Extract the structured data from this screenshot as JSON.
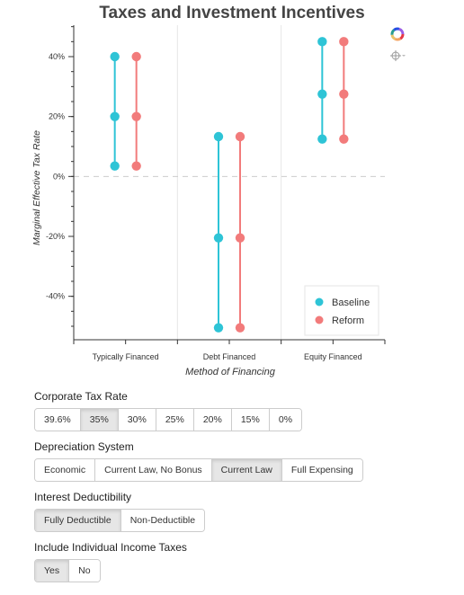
{
  "chart_data": {
    "type": "scatter",
    "title": "Taxes and Investment Incentives",
    "xlabel": "Method of Financing",
    "ylabel": "Marginal Effective Tax Rate",
    "categories": [
      "Typically Financed",
      "Debt Financed",
      "Equity Financed"
    ],
    "ylim": [
      -0.545,
      0.505
    ],
    "yticks": [
      {
        "value": 0.4,
        "label": "40%"
      },
      {
        "value": 0.2,
        "label": "20%"
      },
      {
        "value": 0.0,
        "label": "0%"
      },
      {
        "value": -0.2,
        "label": "-20%"
      },
      {
        "value": -0.4,
        "label": "-40%"
      }
    ],
    "reference_line": 0,
    "legend_position": "bottom-right",
    "series": [
      {
        "name": "Baseline",
        "color": "#2ec4d6",
        "points": [
          {
            "category": "Typically Financed",
            "values": [
              0.4,
              0.2,
              0.035
            ]
          },
          {
            "category": "Debt Financed",
            "values": [
              0.133,
              -0.205,
              -0.505
            ]
          },
          {
            "category": "Equity Financed",
            "values": [
              0.45,
              0.275,
              0.125
            ]
          }
        ]
      },
      {
        "name": "Reform",
        "color": "#f27b7b",
        "points": [
          {
            "category": "Typically Financed",
            "values": [
              0.4,
              0.2,
              0.035
            ]
          },
          {
            "category": "Debt Financed",
            "values": [
              0.133,
              -0.205,
              -0.505
            ]
          },
          {
            "category": "Equity Financed",
            "values": [
              0.45,
              0.275,
              0.125
            ]
          }
        ]
      }
    ]
  },
  "toolbar": {
    "logo_icon": "bokeh-logo-icon",
    "crosshair_icon": "crosshair-icon"
  },
  "controls": [
    {
      "label": "Corporate Tax Rate",
      "options": [
        "39.6%",
        "35%",
        "30%",
        "25%",
        "20%",
        "15%",
        "0%"
      ],
      "selected": "35%"
    },
    {
      "label": "Depreciation System",
      "options": [
        "Economic",
        "Current Law, No Bonus",
        "Current Law",
        "Full Expensing"
      ],
      "selected": "Current Law"
    },
    {
      "label": "Interest Deductibility",
      "options": [
        "Fully Deductible",
        "Non-Deductible"
      ],
      "selected": "Fully Deductible"
    },
    {
      "label": "Include Individual Income Taxes",
      "options": [
        "Yes",
        "No"
      ],
      "selected": "Yes"
    }
  ]
}
